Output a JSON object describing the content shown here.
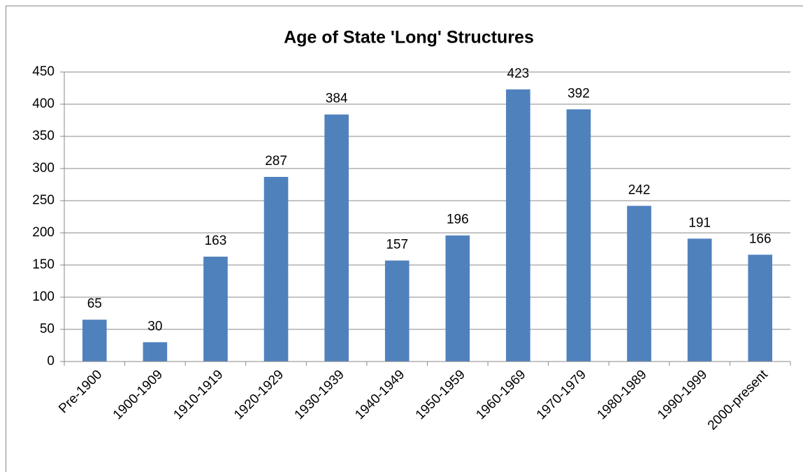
{
  "chart_data": {
    "type": "bar",
    "title": "Age of State 'Long' Structures",
    "categories": [
      "Pre-1900",
      "1900-1909",
      "1910-1919",
      "1920-1929",
      "1930-1939",
      "1940-1949",
      "1950-1959",
      "1960-1969",
      "1970-1979",
      "1980-1989",
      "1990-1999",
      "2000-present"
    ],
    "values": [
      65,
      30,
      163,
      287,
      384,
      157,
      196,
      423,
      392,
      242,
      191,
      166
    ],
    "color": "#4f81bd",
    "ylim": [
      0,
      450
    ],
    "yticks": [
      0,
      50,
      100,
      150,
      200,
      250,
      300,
      350,
      400,
      450
    ],
    "grid": true
  }
}
